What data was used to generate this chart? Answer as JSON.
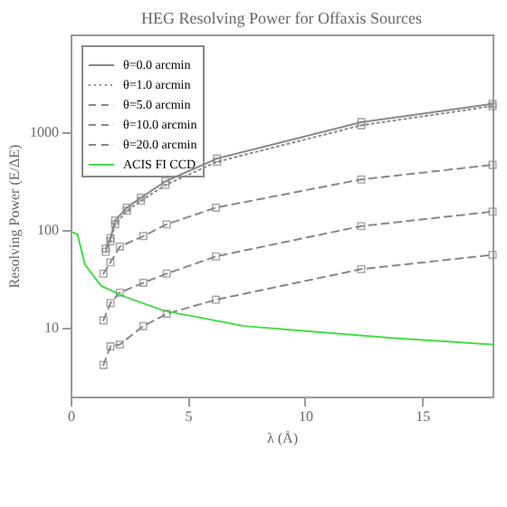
{
  "chart_data": {
    "type": "line",
    "title": "HEG Resolving Power for Offaxis Sources",
    "xlabel": "λ (Å)",
    "ylabel": "Resolving Power (E/ΔE)",
    "xlim": [
      0,
      18
    ],
    "xticks": [
      0,
      5,
      10,
      15
    ],
    "ylim": [
      2,
      10000
    ],
    "yticks": [
      10,
      100,
      1000
    ],
    "log": true,
    "grid": false,
    "legend": "top left",
    "marker": "square",
    "series": [
      {
        "name": "θ=0.0 arcmin",
        "color": "#888888",
        "line_style": "solid",
        "x": [
          1.5,
          1.7,
          1.9,
          2.4,
          3.0,
          4.05,
          6.25,
          12.4,
          18
        ],
        "values": [
          65,
          83,
          126,
          170,
          215,
          316,
          540,
          1270,
          1950
        ]
      },
      {
        "name": "θ=1.0 arcmin",
        "color": "#888888",
        "line_style": "dotted",
        "x": [
          1.5,
          1.7,
          1.9,
          2.4,
          3.0,
          4.05,
          6.25,
          12.4,
          18
        ],
        "values": [
          60,
          77,
          115,
          158,
          200,
          290,
          500,
          1180,
          1850
        ]
      },
      {
        "name": "θ=5.0 arcmin",
        "color": "#888888",
        "line_style": "dashed",
        "x": [
          1.4,
          1.7,
          2.1,
          3.1,
          4.1,
          6.2,
          12.4,
          18
        ],
        "values": [
          36,
          47,
          68,
          87,
          115,
          170,
          330,
          465
        ]
      },
      {
        "name": "θ=10.0 arcmin",
        "color": "#888888",
        "line_style": "dashed",
        "x": [
          1.4,
          1.7,
          2.1,
          3.1,
          4.1,
          6.2,
          12.4,
          18
        ],
        "values": [
          12,
          18,
          23,
          29,
          36,
          54,
          110,
          155
        ]
      },
      {
        "name": "θ=20.0 arcmin",
        "color": "#888888",
        "line_style": "dashed",
        "x": [
          1.4,
          1.7,
          2.1,
          3.1,
          4.1,
          6.2,
          12.4,
          18
        ],
        "values": [
          4.2,
          6.5,
          6.8,
          10.5,
          14,
          19.5,
          40,
          56
        ]
      },
      {
        "name": "ACIS FI CCD",
        "color": "#44dd44",
        "line_style": "solid",
        "marker": "none",
        "x": [
          0.1,
          0.3,
          0.6,
          1.3,
          2.3,
          4.0,
          7.4,
          9.6,
          13.8,
          18
        ],
        "values": [
          95,
          90,
          45,
          27,
          21,
          15,
          10.5,
          9.5,
          7.9,
          6.8
        ]
      }
    ]
  }
}
